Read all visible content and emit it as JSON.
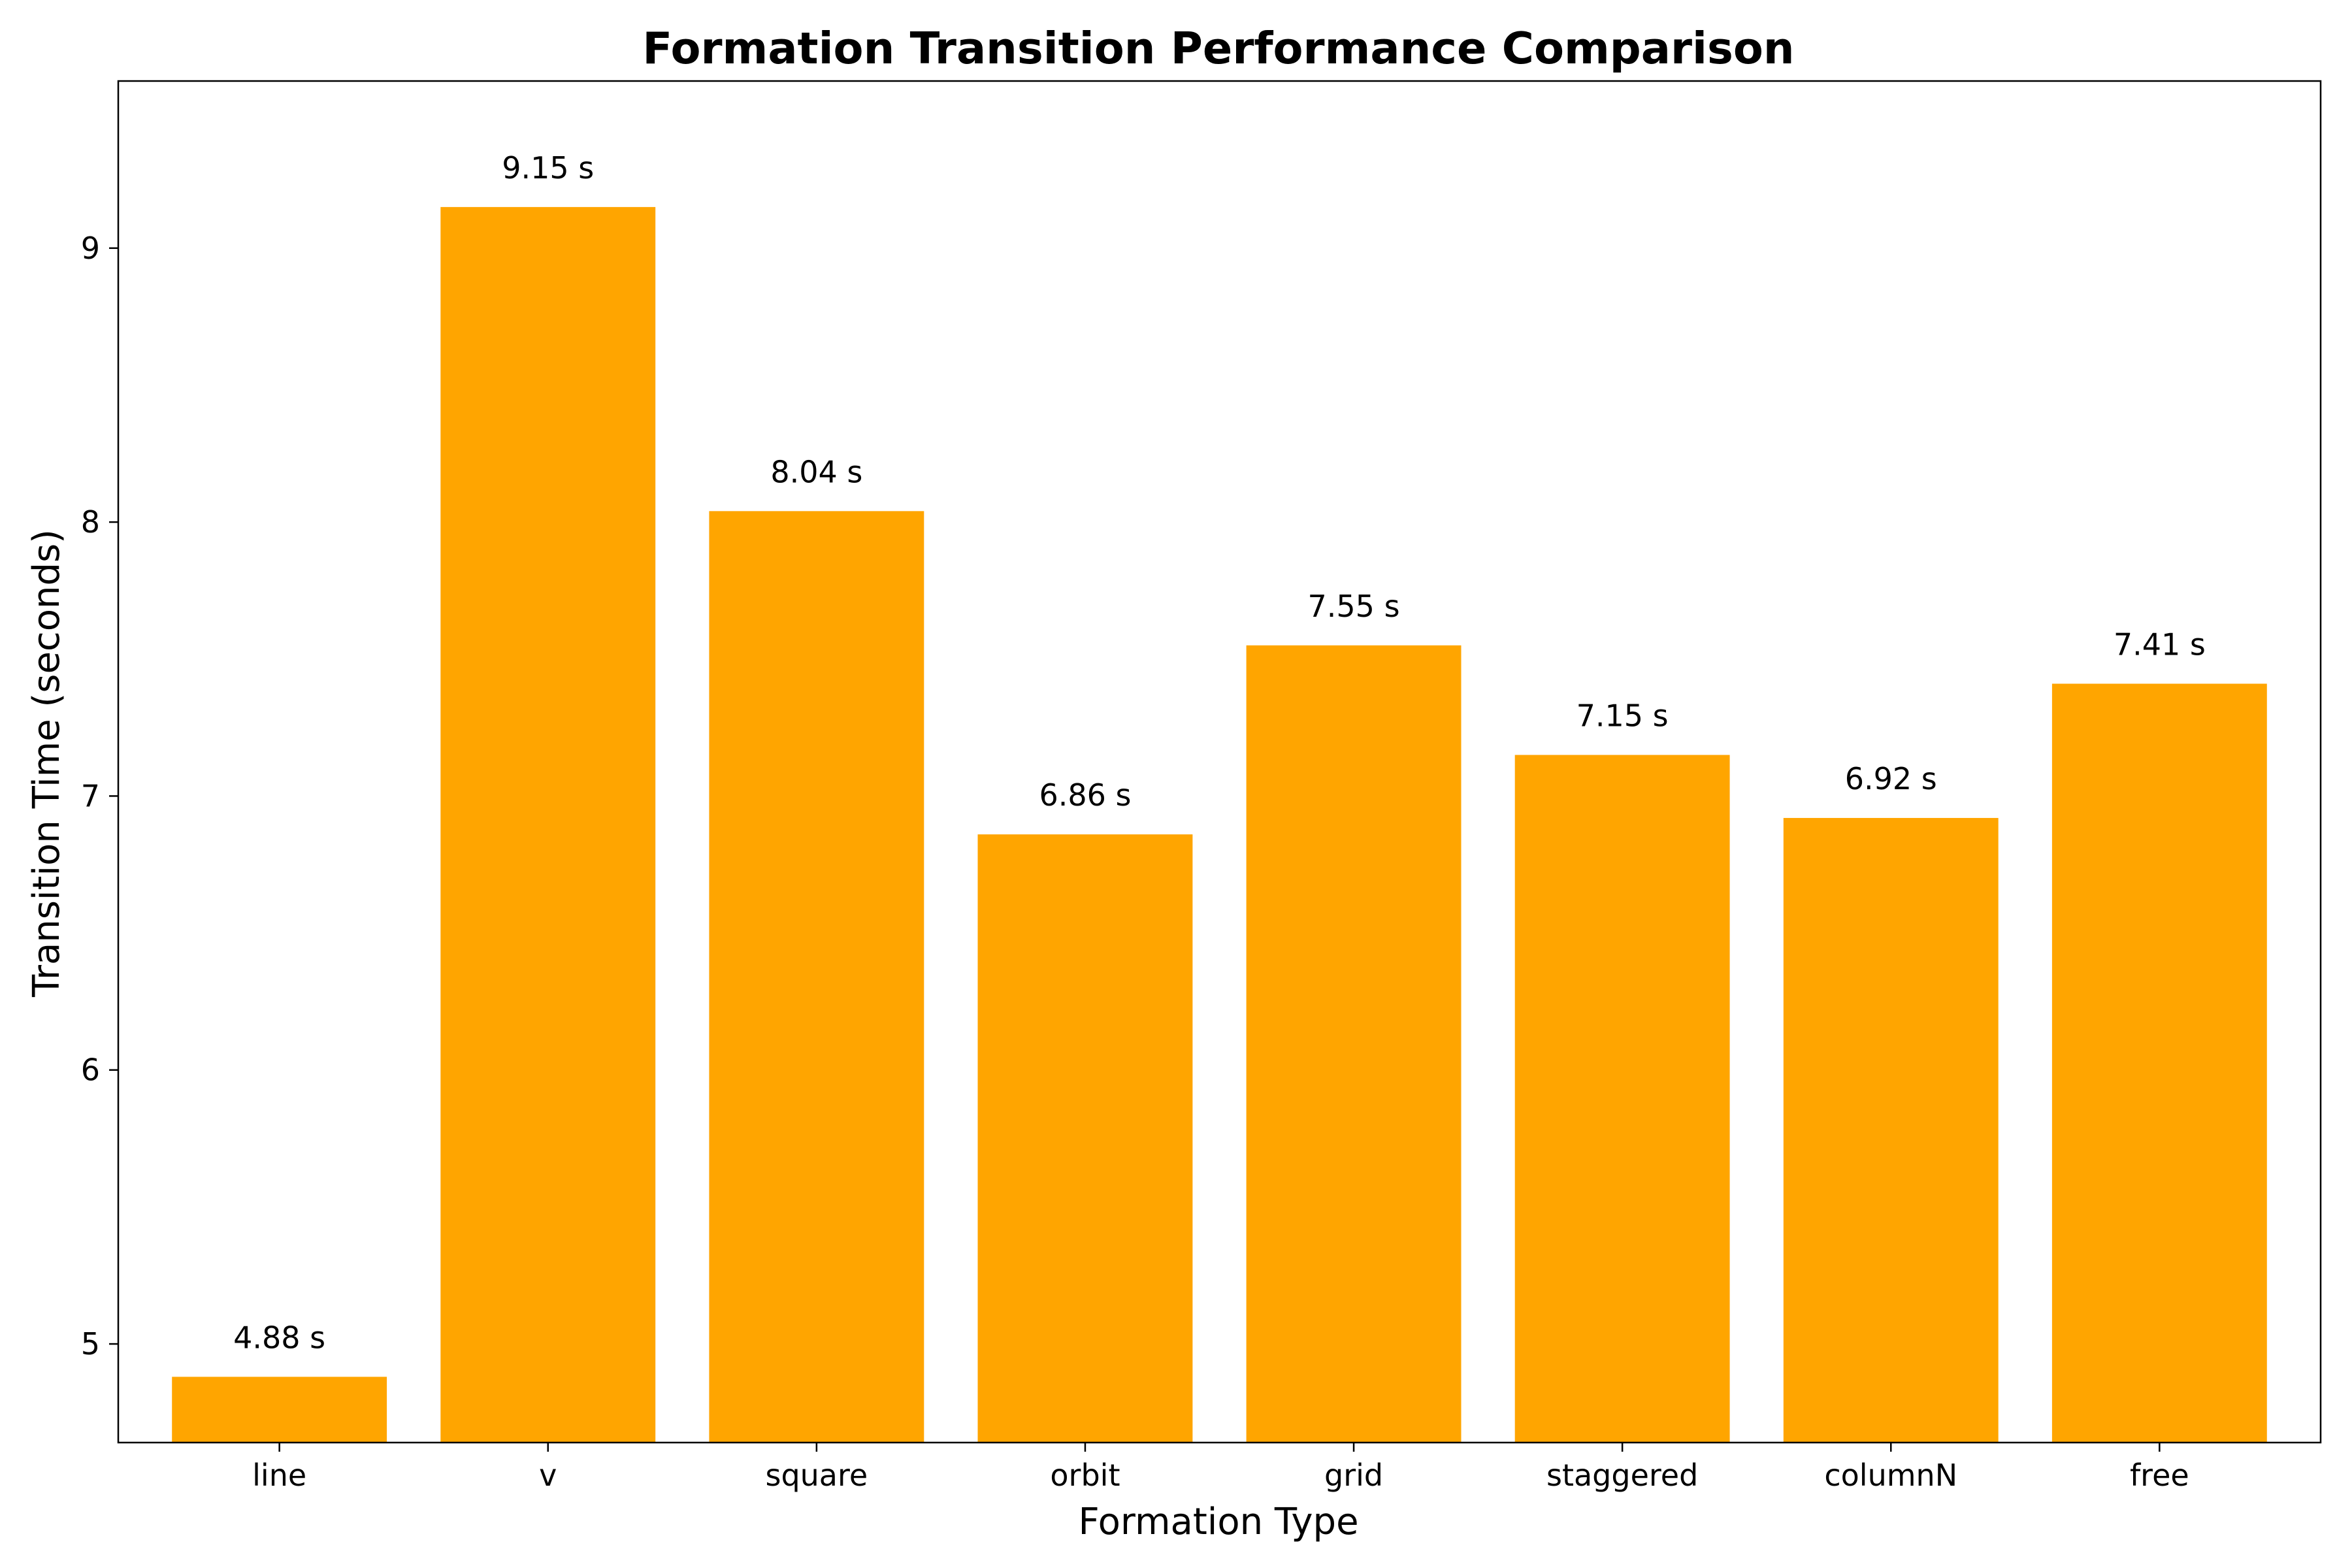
{
  "chart_data": {
    "type": "bar",
    "title": "Formation Transition Performance Comparison",
    "xlabel": "Formation Type",
    "ylabel": "Transition Time (seconds)",
    "categories": [
      "line",
      "v",
      "square",
      "orbit",
      "grid",
      "staggered",
      "columnN",
      "free"
    ],
    "values": [
      4.88,
      9.15,
      8.04,
      6.86,
      7.55,
      7.15,
      6.92,
      7.41
    ],
    "data_labels": [
      "4.88 s",
      "9.15 s",
      "8.04 s",
      "6.86 s",
      "7.55 s",
      "7.15 s",
      "6.92 s",
      "7.41 s"
    ],
    "ylim": [
      4.64,
      9.61
    ],
    "yticks": [
      5,
      6,
      7,
      8,
      9
    ],
    "bar_color": "#ffa500",
    "grid": false,
    "legend": "none"
  }
}
